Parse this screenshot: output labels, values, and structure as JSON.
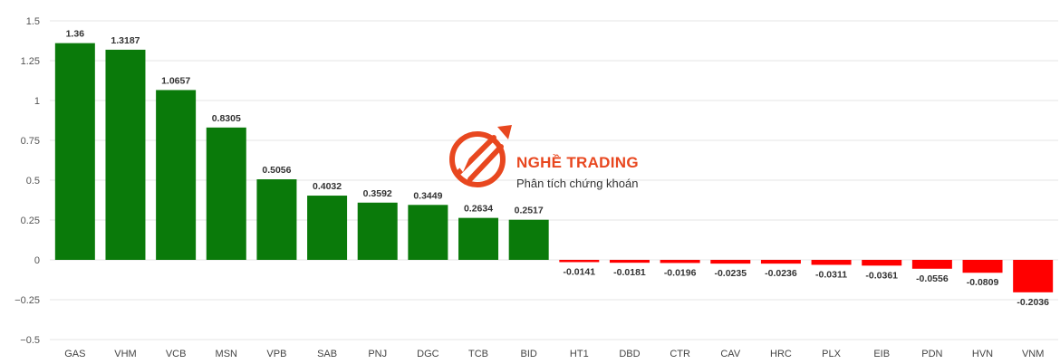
{
  "brand": {
    "name": "NGHỀ TRADING",
    "tagline": "Phân tích chứng khoán",
    "color": "#e8471f"
  },
  "colors": {
    "positive": "#0a7a0a",
    "negative": "#ff0000",
    "grid": "#e6e6e6"
  },
  "chart_data": {
    "type": "bar",
    "categories": [
      "GAS",
      "VHM",
      "VCB",
      "MSN",
      "VPB",
      "SAB",
      "PNJ",
      "DGC",
      "TCB",
      "BID",
      "HT1",
      "DBD",
      "CTR",
      "CAV",
      "HRC",
      "PLX",
      "EIB",
      "PDN",
      "HVN",
      "VNM"
    ],
    "values": [
      1.36,
      1.3187,
      1.0657,
      0.8305,
      0.5056,
      0.4032,
      0.3592,
      0.3449,
      0.2634,
      0.2517,
      -0.0141,
      -0.0181,
      -0.0196,
      -0.0235,
      -0.0236,
      -0.0311,
      -0.0361,
      -0.0556,
      -0.0809,
      -0.2036
    ],
    "ylim": [
      -0.5,
      1.5
    ],
    "yticks": [
      -0.5,
      -0.25,
      0,
      0.25,
      0.5,
      0.75,
      1,
      1.25,
      1.5
    ],
    "ytick_labels": [
      "−0.5",
      "−0.25",
      "0",
      "0.25",
      "0.5",
      "0.75",
      "1",
      "1.25",
      "1.5"
    ],
    "grid": true,
    "title": "",
    "xlabel": "",
    "ylabel": ""
  }
}
